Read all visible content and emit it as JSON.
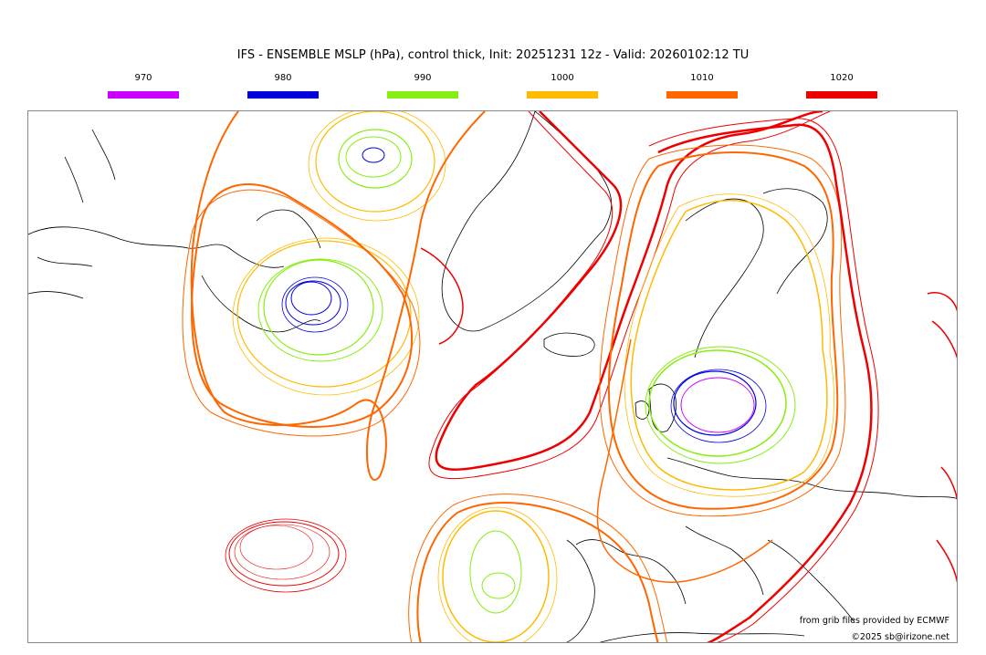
{
  "title": "IFS - ENSEMBLE MSLP (hPa), control thick, Init: 20251231 12z - Valid: 20260102:12 TU",
  "legend": [
    {
      "label": "970",
      "color": "#cc00ff"
    },
    {
      "label": "980",
      "color": "#0000dd"
    },
    {
      "label": "990",
      "color": "#88ee11"
    },
    {
      "label": "1000",
      "color": "#ffbb00"
    },
    {
      "label": "1010",
      "color": "#ff6600"
    },
    {
      "label": "1020",
      "color": "#ee0000"
    }
  ],
  "map": {
    "features": [
      {
        "name": "low-labrador-sea",
        "type": "low"
      },
      {
        "name": "low-baffin-bay",
        "type": "low"
      },
      {
        "name": "low-scandinavia",
        "type": "low"
      },
      {
        "name": "low-iberian-atlantic",
        "type": "low"
      },
      {
        "name": "high-greenland-atlantic",
        "type": "high"
      },
      {
        "name": "high-mid-atlantic",
        "type": "high"
      }
    ]
  },
  "credit": {
    "line1": "from grib files provided by ECMWF",
    "line2": "©2025 sb@irizone.net"
  }
}
